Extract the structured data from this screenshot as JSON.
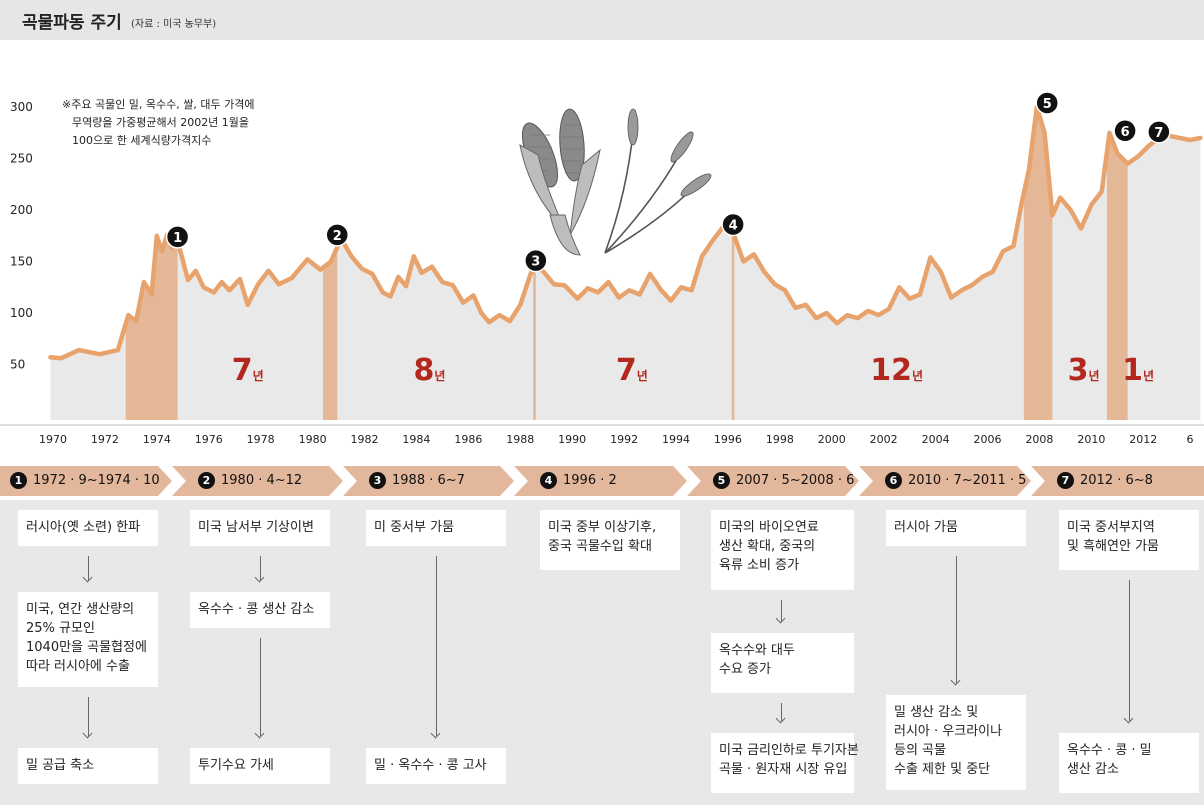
{
  "title": "곡물파동 주기",
  "source": "(자료 : 미국 농무부)",
  "note": [
    "※주요 곡물인 밀, 옥수수, 쌀, 대두 가격에",
    "무역량을 가중평균해서 2002년 1월을",
    "100으로 한 세계식량가격지수"
  ],
  "colors": {
    "line": "#e8a36d",
    "shade": "#e4b797",
    "area": "#e9e9e9",
    "years": "#b3281e",
    "marker": "#111111"
  },
  "chart_data": {
    "type": "line",
    "title": "곡물파동 주기",
    "xlabel": "",
    "ylabel": "",
    "ylim": [
      0,
      310
    ],
    "xlim": [
      1969.5,
      2014.2
    ],
    "y_ticks": [
      "50",
      "100",
      "150",
      "200",
      "250",
      "300"
    ],
    "x_ticks": [
      "1970",
      "1972",
      "1974",
      "1976",
      "1978",
      "1980",
      "1982",
      "1984",
      "1986",
      "1988",
      "1990",
      "1992",
      "1994",
      "1996",
      "1998",
      "2000",
      "2002",
      "2004",
      "2006",
      "2008",
      "2010",
      "2012",
      "6"
    ],
    "series": [
      {
        "x": [
          1969.9,
          1970.3,
          1971.0,
          1971.8,
          1972.5,
          1972.9,
          1973.2,
          1973.5,
          1973.8,
          1974.0,
          1974.2,
          1974.4,
          1974.6,
          1974.8,
          1975.2,
          1975.5,
          1975.8,
          1976.2,
          1976.5,
          1976.8,
          1977.2,
          1977.5,
          1977.9,
          1978.3,
          1978.7,
          1979.2,
          1979.8,
          1980.3,
          1980.7,
          1981.1,
          1981.5,
          1981.9,
          1982.3,
          1982.7,
          1983.0,
          1983.3,
          1983.6,
          1983.9,
          1984.2,
          1984.6,
          1985.0,
          1985.4,
          1985.8,
          1986.2,
          1986.5,
          1986.8,
          1987.2,
          1987.6,
          1988.0,
          1988.4,
          1988.6,
          1988.9,
          1989.3,
          1989.7,
          1990.2,
          1990.6,
          1991.0,
          1991.4,
          1991.8,
          1992.2,
          1992.6,
          1993.0,
          1993.4,
          1993.8,
          1994.2,
          1994.6,
          1995.0,
          1995.4,
          1995.8,
          1996.2,
          1996.6,
          1997.0,
          1997.4,
          1997.8,
          1998.2,
          1998.6,
          1999.0,
          1999.4,
          1999.8,
          2000.2,
          2000.6,
          2001.0,
          2001.4,
          2001.8,
          2002.2,
          2002.6,
          2003.0,
          2003.4,
          2003.8,
          2004.2,
          2004.6,
          2005.0,
          2005.4,
          2005.8,
          2006.2,
          2006.6,
          2007.0,
          2007.3,
          2007.6,
          2007.9,
          2008.2,
          2008.5,
          2008.8,
          2009.2,
          2009.6,
          2010.0,
          2010.4,
          2010.7,
          2011.0,
          2011.4,
          2011.8,
          2012.2,
          2012.6,
          2013.0,
          2013.4,
          2013.8,
          2014.2
        ],
        "values": [
          57,
          56,
          64,
          60,
          64,
          98,
          92,
          130,
          118,
          175,
          160,
          176,
          163,
          170,
          132,
          141,
          125,
          120,
          130,
          122,
          133,
          108,
          128,
          141,
          128,
          134,
          152,
          142,
          150,
          172,
          155,
          143,
          138,
          120,
          116,
          135,
          126,
          155,
          139,
          145,
          130,
          127,
          110,
          117,
          100,
          91,
          98,
          92,
          108,
          138,
          147,
          140,
          128,
          127,
          114,
          124,
          120,
          130,
          115,
          122,
          118,
          138,
          123,
          112,
          125,
          122,
          155,
          170,
          183,
          178,
          150,
          157,
          140,
          128,
          122,
          105,
          108,
          95,
          100,
          90,
          98,
          95,
          102,
          98,
          104,
          125,
          114,
          118,
          154,
          140,
          115,
          122,
          127,
          135,
          140,
          160,
          165,
          205,
          240,
          300,
          275,
          195,
          212,
          200,
          182,
          205,
          218,
          275,
          255,
          245,
          252,
          262,
          270,
          272,
          270,
          268,
          270
        ]
      }
    ],
    "shaded": [
      [
        1972.8,
        1974.8
      ],
      [
        1980.4,
        1980.95
      ],
      [
        1988.5,
        1988.6
      ],
      [
        1996.15,
        1996.25
      ],
      [
        2007.4,
        2008.5
      ],
      [
        2010.6,
        2011.4
      ]
    ],
    "markers": [
      {
        "label": "1",
        "x": 1974.8,
        "y": 170
      },
      {
        "label": "2",
        "x": 1980.95,
        "y": 172
      },
      {
        "label": "3",
        "x": 1988.6,
        "y": 147
      },
      {
        "label": "4",
        "x": 1996.2,
        "y": 182
      },
      {
        "label": "5",
        "x": 2008.3,
        "y": 300
      },
      {
        "label": "6",
        "x": 2011.3,
        "y": 273
      },
      {
        "label": "7",
        "x": 2012.6,
        "y": 272
      }
    ],
    "interval_labels": [
      {
        "num": "7",
        "unit": "년",
        "x": 1977.5
      },
      {
        "num": "8",
        "unit": "년",
        "x": 1984.5
      },
      {
        "num": "7",
        "unit": "년",
        "x": 1992.3
      },
      {
        "num": "12",
        "unit": "년",
        "x": 2002.5
      },
      {
        "num": "3",
        "unit": "년",
        "x": 2009.7
      },
      {
        "num": "1",
        "unit": "년",
        "x": 2011.8
      }
    ]
  },
  "timeline": [
    {
      "num": "1",
      "label": "1972 · 9~1974 · 10"
    },
    {
      "num": "2",
      "label": "1980 · 4~12"
    },
    {
      "num": "3",
      "label": "1988 · 6~7"
    },
    {
      "num": "4",
      "label": "1996 · 2"
    },
    {
      "num": "5",
      "label": "2007 · 5~2008 · 6"
    },
    {
      "num": "6",
      "label": "2010 · 7~2011 · 5"
    },
    {
      "num": "7",
      "label": "2012 · 6~8"
    }
  ],
  "events": [
    [
      [
        "러시아(옛 소련) 한파"
      ],
      [
        "미국, 연간 생산량의",
        "25% 규모인",
        "1040만을 곡물협정에",
        "따라 러시아에 수출"
      ],
      [
        "밀 공급 축소"
      ]
    ],
    [
      [
        "미국 남서부 기상이변"
      ],
      [
        "옥수수 · 콩 생산 감소"
      ],
      [
        "투기수요 가세"
      ]
    ],
    [
      [
        "미 중서부 가뭄"
      ],
      [
        "밀 · 옥수수 · 콩 고사"
      ]
    ],
    [
      [
        "미국 중부 이상기후,",
        "중국 곡물수입 확대"
      ]
    ],
    [
      [
        "미국의 바이오연료",
        "생산 확대, 중국의",
        "육류 소비 증가"
      ],
      [
        "옥수수와 대두",
        "수요 증가"
      ],
      [
        "미국 금리인하로 투기자본",
        "곡물 · 원자재 시장 유입"
      ]
    ],
    [
      [
        "러시아 가뭄"
      ],
      [
        "밀 생산 감소 및",
        "러시아 · 우크라이나",
        "등의 곡물",
        "수출 제한 및 중단"
      ]
    ],
    [
      [
        "미국 중서부지역",
        "및 흑해연안 가뭄"
      ],
      [
        "옥수수 · 콩 · 밀",
        "생산 감소"
      ]
    ]
  ]
}
